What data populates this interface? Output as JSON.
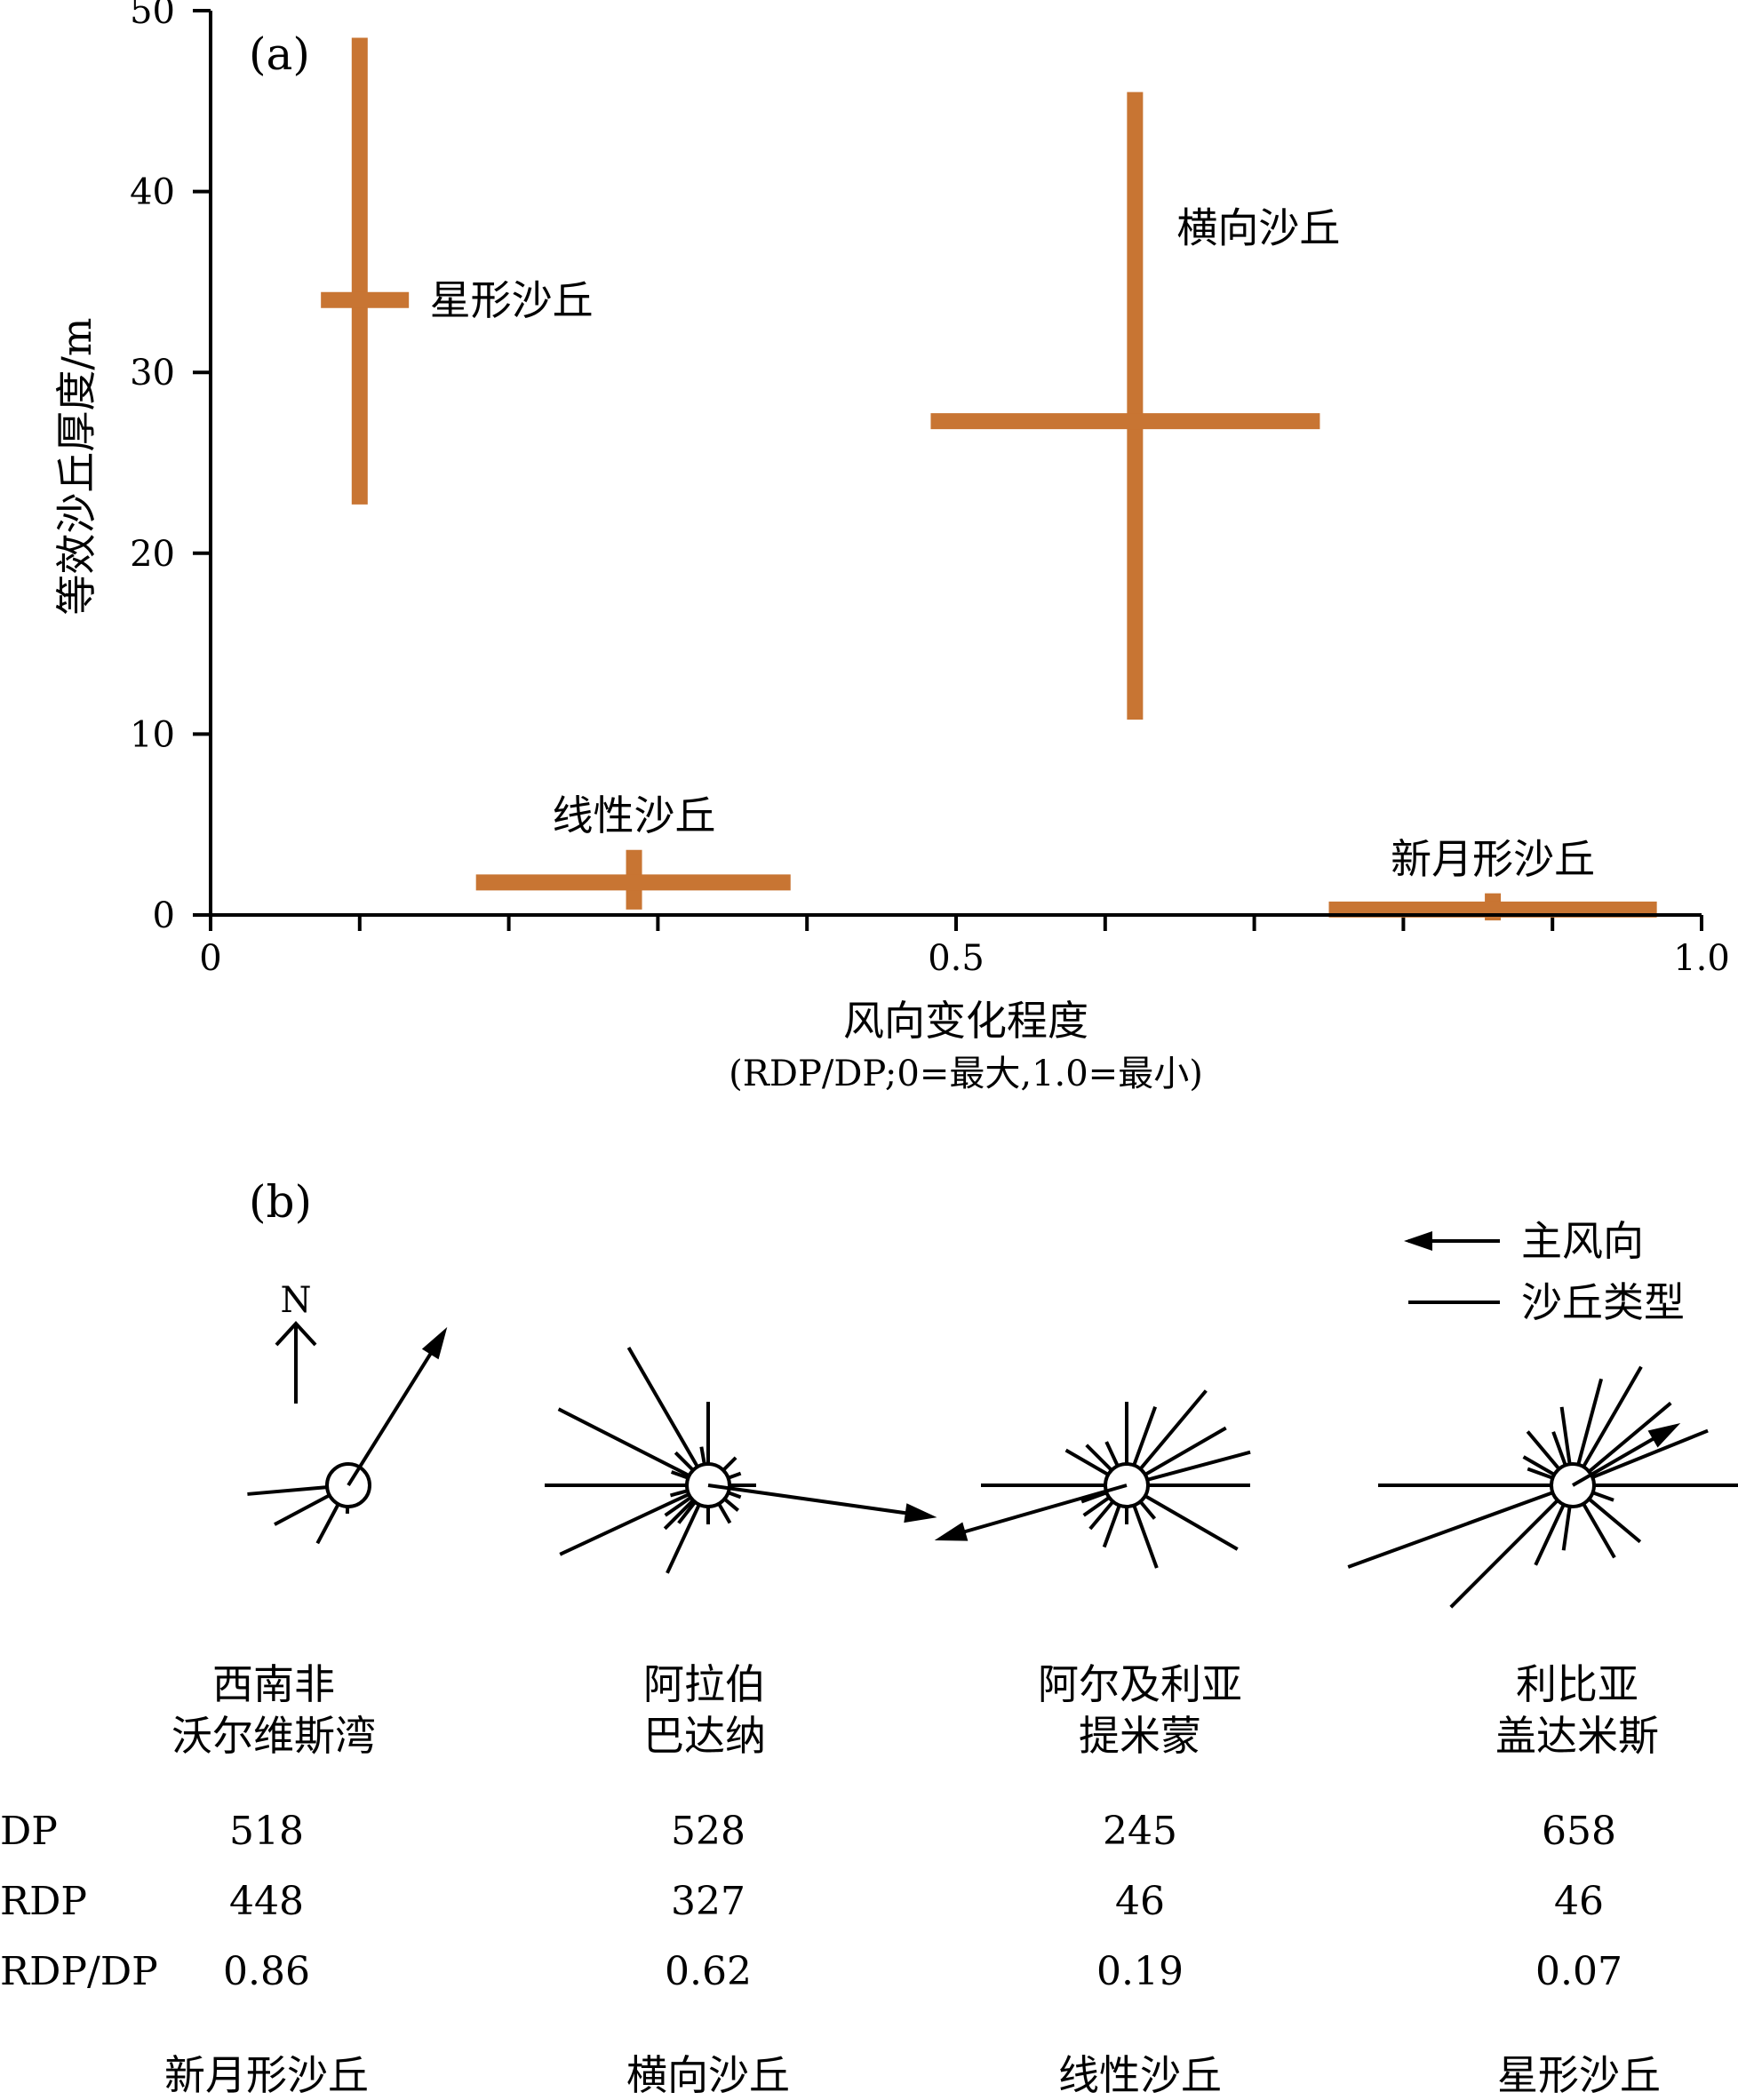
{
  "chart_data": {
    "type": "scatter",
    "panel_label": "(a)",
    "xlabel": "风向变化程度",
    "xlabel_sub": "(RDP/DP;0=最大,1.0=最小)",
    "ylabel": "等效沙丘厚度/m",
    "xlim": [
      0,
      1.0
    ],
    "ylim": [
      0,
      50
    ],
    "x_ticks": [
      {
        "v": 0,
        "label": "0"
      },
      {
        "v": 0.5,
        "label": "0.5"
      },
      {
        "v": 1.0,
        "label": "1.0"
      }
    ],
    "x_minor_ticks": [
      0.1,
      0.2,
      0.3,
      0.4,
      0.6,
      0.7,
      0.8,
      0.9
    ],
    "y_ticks": [
      {
        "v": 0,
        "label": "0"
      },
      {
        "v": 10,
        "label": "10"
      },
      {
        "v": 20,
        "label": "20"
      },
      {
        "v": 30,
        "label": "30"
      },
      {
        "v": 40,
        "label": "40"
      },
      {
        "v": 50,
        "label": "50"
      }
    ],
    "series_color": "#c87533",
    "points": [
      {
        "name": "星形沙丘",
        "x": 0.1,
        "x_min": 0.074,
        "x_max": 0.133,
        "y": 34,
        "y_min": 22.7,
        "y_max": 48.5,
        "label_at": [
          0.147,
          34
        ],
        "label_anchor": "start"
      },
      {
        "name": "横向沙丘",
        "x": 0.62,
        "x_min": 0.483,
        "x_max": 0.744,
        "y": 27.3,
        "y_min": 10.8,
        "y_max": 45.5,
        "label_at": [
          0.648,
          38
        ],
        "label_anchor": "start"
      },
      {
        "name": "线性沙丘",
        "x": 0.284,
        "x_min": 0.178,
        "x_max": 0.389,
        "y": 1.8,
        "y_min": 0.3,
        "y_max": 3.6,
        "label_at": [
          0.284,
          5.5
        ],
        "label_anchor": "middle"
      },
      {
        "name": "新月形沙丘",
        "x": 0.86,
        "x_min": 0.75,
        "x_max": 0.97,
        "y": 0.3,
        "y_min": -0.3,
        "y_max": 1.2,
        "label_at": [
          0.86,
          3.1
        ],
        "label_anchor": "middle"
      }
    ]
  },
  "panel_b": {
    "panel_label": "(b)",
    "north_label": "N",
    "legend": {
      "main_wind": "主风向",
      "dune_type": "沙丘类型"
    },
    "row_labels": [
      "DP",
      "RDP",
      "RDP/DP"
    ],
    "sites": [
      {
        "name_line1": "西南非",
        "name_line2": "沃尔维斯湾",
        "dp": "518",
        "rdp": "448",
        "ratio": "0.86",
        "dune_type": "新月形沙丘",
        "rays": [
          [
            208,
            70
          ],
          [
            242,
            50
          ],
          [
            185,
            90
          ],
          [
            268,
            8
          ]
        ],
        "arrow": {
          "deg": 58,
          "len": 210
        }
      },
      {
        "name_line1": "阿拉伯",
        "name_line2": "巴达纳",
        "dp": "528",
        "rdp": "327",
        "ratio": "0.62",
        "dune_type": "横向沙丘",
        "rays": [
          [
            180,
            160
          ],
          [
            0,
            30
          ],
          [
            90,
            70
          ],
          [
            270,
            20
          ],
          [
            153,
            165
          ],
          [
            120,
            155
          ],
          [
            205,
            160
          ],
          [
            245,
            85
          ],
          [
            225,
            45
          ],
          [
            215,
            35
          ],
          [
            232,
            30
          ],
          [
            300,
            25
          ],
          [
            320,
            20
          ],
          [
            340,
            15
          ],
          [
            20,
            15
          ],
          [
            45,
            20
          ],
          [
            135,
            28
          ],
          [
            160,
            20
          ],
          [
            195,
            20
          ],
          [
            100,
            20
          ]
        ],
        "arrow": {
          "deg": -8,
          "len": 260
        }
      },
      {
        "name_line1": "阿尔及利亚",
        "name_line2": "提米蒙",
        "dp": "245",
        "rdp": "46",
        "ratio": "0.19",
        "dune_type": "线性沙丘",
        "rays": [
          [
            180,
            140
          ],
          [
            0,
            115
          ],
          [
            90,
            70
          ],
          [
            15,
            120
          ],
          [
            30,
            105
          ],
          [
            50,
            115
          ],
          [
            70,
            70
          ],
          [
            330,
            120
          ],
          [
            290,
            75
          ],
          [
            250,
            50
          ],
          [
            230,
            40
          ],
          [
            215,
            35
          ],
          [
            200,
            30
          ],
          [
            150,
            55
          ],
          [
            135,
            40
          ],
          [
            115,
            30
          ],
          [
            310,
            25
          ],
          [
            270,
            20
          ]
        ],
        "arrow": {
          "deg": 196,
          "len": 225
        }
      },
      {
        "name_line1": "利比亚",
        "name_line2": "盖达米斯",
        "dp": "658",
        "rdp": "46",
        "ratio": "0.07",
        "dune_type": "星形沙丘",
        "rays": [
          [
            180,
            195
          ],
          [
            0,
            185
          ],
          [
            22,
            140
          ],
          [
            40,
            120
          ],
          [
            60,
            130
          ],
          [
            75,
            100
          ],
          [
            98,
            65
          ],
          [
            130,
            55
          ],
          [
            150,
            40
          ],
          [
            160,
            30
          ],
          [
            200,
            245
          ],
          [
            225,
            170
          ],
          [
            245,
            75
          ],
          [
            262,
            50
          ],
          [
            300,
            70
          ],
          [
            320,
            75
          ],
          [
            340,
            25
          ],
          [
            110,
            40
          ]
        ],
        "arrow": {
          "deg": 30,
          "len": 140
        }
      }
    ]
  }
}
